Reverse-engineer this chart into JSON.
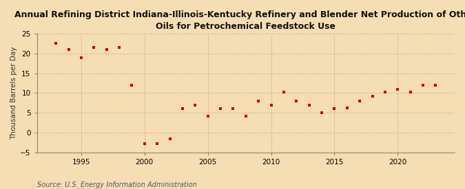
{
  "title": "Annual Refining District Indiana-Illinois-Kentucky Refinery and Blender Net Production of Other\nOils for Petrochemical Feedstock Use",
  "ylabel": "Thousand Barrels per Day",
  "source": "Source: U.S. Energy Information Administration",
  "background_color": "#f5deb3",
  "plot_bg_color": "#faebd7",
  "marker_color": "#cc0000",
  "years": [
    1993,
    1994,
    1995,
    1996,
    1997,
    1998,
    1999,
    2000,
    2001,
    2002,
    2003,
    2004,
    2005,
    2006,
    2007,
    2008,
    2009,
    2010,
    2011,
    2012,
    2013,
    2014,
    2015,
    2016,
    2017,
    2018,
    2019,
    2020,
    2021,
    2022,
    2023
  ],
  "values": [
    22.5,
    21.0,
    19.0,
    21.5,
    21.0,
    21.5,
    12.0,
    -2.8,
    -2.8,
    -1.5,
    6.0,
    7.0,
    4.2,
    6.0,
    6.0,
    4.2,
    8.0,
    7.0,
    10.2,
    8.0,
    7.0,
    5.0,
    6.0,
    6.2,
    8.0,
    9.2,
    10.2,
    11.0,
    10.2,
    12.0,
    12.0
  ],
  "xlim": [
    1991.5,
    2024.5
  ],
  "ylim": [
    -5,
    25
  ],
  "yticks": [
    -5,
    0,
    5,
    10,
    15,
    20,
    25
  ],
  "xticks": [
    1995,
    2000,
    2005,
    2010,
    2015,
    2020
  ],
  "grid_color": "#c8b89a",
  "spine_color": "#888877",
  "title_fontsize": 9,
  "label_fontsize": 7.5,
  "tick_fontsize": 7.5,
  "source_fontsize": 7
}
